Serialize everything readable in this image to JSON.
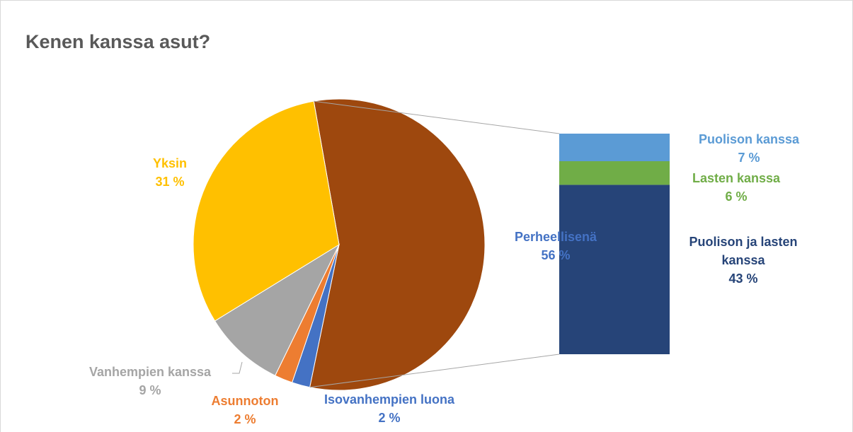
{
  "chart_data": {
    "type": "pie",
    "title": "Kenen kanssa asut?",
    "categories": [
      "Perheellisenä",
      "Isovanhempien luona",
      "Asunnoton",
      "Vanhempien kanssa",
      "Yksin"
    ],
    "values": [
      56,
      2,
      2,
      9,
      31
    ],
    "value_labels": [
      "56 %",
      "2 %",
      "2 %",
      "9 %",
      "31 %"
    ],
    "colors": [
      "#9E480E",
      "#4472C4",
      "#ED7D31",
      "#A5A5A5",
      "#FFC000"
    ],
    "breakdown": {
      "categories": [
        "Puolison ja lasten kanssa",
        "Lasten kanssa",
        "Puolison kanssa"
      ],
      "values": [
        43,
        6,
        7
      ],
      "value_labels": [
        "43 %",
        "6 %",
        "7 %"
      ],
      "colors": [
        "#264478",
        "#70AD47",
        "#5B9BD5"
      ]
    }
  }
}
